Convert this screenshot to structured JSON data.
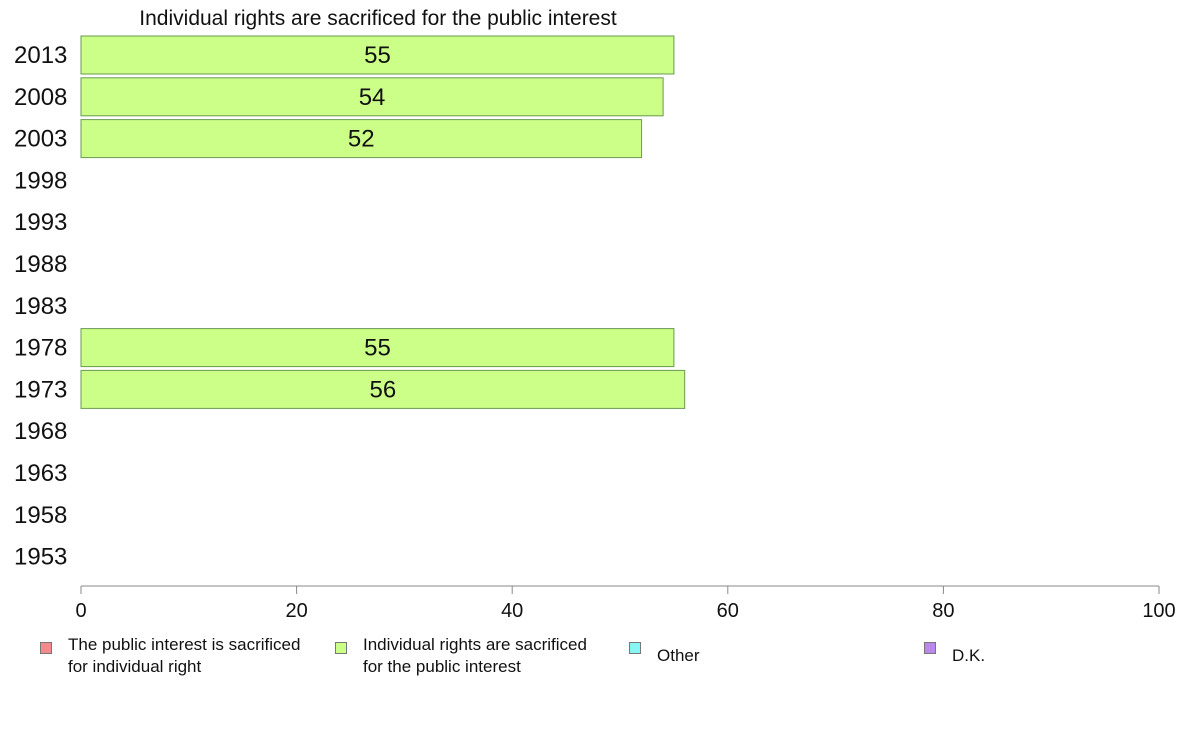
{
  "chart_data": {
    "type": "bar",
    "orientation": "horizontal",
    "title": "Individual rights are sacrificed for the public interest",
    "categories": [
      "2013",
      "2008",
      "2003",
      "1998",
      "1993",
      "1988",
      "1983",
      "1978",
      "1973",
      "1968",
      "1963",
      "1958",
      "1953"
    ],
    "series": [
      {
        "name": "Individual rights are sacrificed for the public interest",
        "values": [
          55,
          54,
          52,
          null,
          null,
          null,
          null,
          55,
          56,
          null,
          null,
          null,
          null
        ],
        "color": "#ccff88"
      }
    ],
    "xlim": [
      0,
      100
    ],
    "xticks": [
      "0",
      "20",
      "40",
      "60",
      "80",
      "100"
    ],
    "xlabel": "",
    "ylabel": "",
    "grid": false,
    "legend_placement": "bottom"
  },
  "legend": {
    "items": [
      {
        "label": "The public interest is sacrificed\nfor individual right",
        "color": "#f28b8b"
      },
      {
        "label": "Individual rights are sacrificed\nfor the public interest",
        "color": "#ccff88"
      },
      {
        "label": "Other",
        "color": "#88f5f5"
      },
      {
        "label": "D.K.",
        "color": "#bb88ee"
      }
    ]
  }
}
